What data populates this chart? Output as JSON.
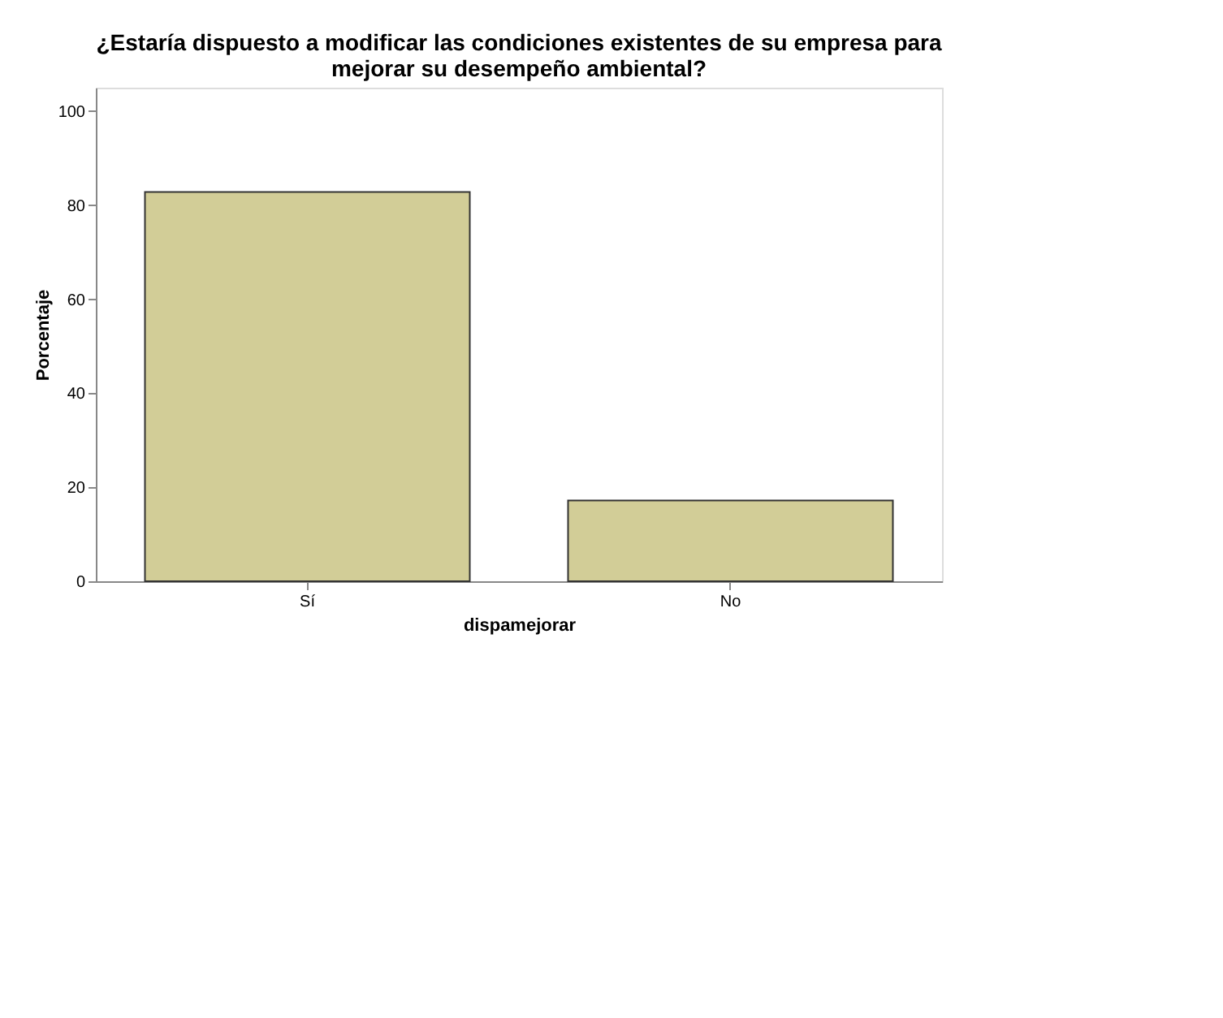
{
  "chart_data": {
    "type": "bar",
    "title": "¿Estaría dispuesto a modificar las condiciones existentes de su empresa para\nmejorar su desempeño ambiental?",
    "xlabel": "dispamejorar",
    "ylabel": "Porcentaje",
    "categories": [
      "Sí",
      "No"
    ],
    "values": [
      82.8,
      17.2
    ],
    "color": "#d2cd97",
    "ylim": [
      0,
      105
    ],
    "yticks": [
      0,
      20,
      40,
      60,
      80,
      100
    ],
    "grid": false
  }
}
